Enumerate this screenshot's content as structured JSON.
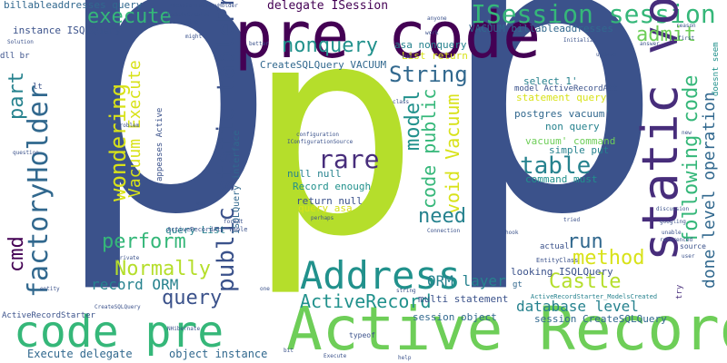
{
  "words": {
    "big_p_left": "p",
    "big_p_right": "p",
    "big_p_center": "p",
    "pre_code": "pre code",
    "active_record": "Active Record",
    "code_pre": "code pre",
    "address": "Address",
    "static_void": "static void",
    "isession_session": "ISession session",
    "factoryholder": "factoryHolder",
    "public_static_tableprefix": "public static tablePrefix",
    "activerecord": "ActiveRecord",
    "castle": "Castle",
    "execute": "execute",
    "admit": "admit",
    "nonquery": "nonquery",
    "string": "String",
    "rare": "rare",
    "table": "table",
    "model": "model",
    "need": "need",
    "run": "run",
    "perform": "perform",
    "normally": "Normally",
    "query": "query",
    "method": "method",
    "wondering": "wondering",
    "part": "part",
    "cmd": "cmd",
    "following_code": "following code",
    "done_level_operation": "done level operation",
    "vacuum_execute": "Vacuum Execute",
    "code_public": "code public",
    "void_vacuum": "void Vacuum",
    "record_orm": "record ORM",
    "orm_layer": "ORM layer",
    "database_level": "database level",
    "delegate_isession": "delegate ISession",
    "billableaddresses_query": "billableaddresses query",
    "vacuum_billableaddresses": "VACUUM billableaddresses",
    "instance_isqlquery": "instance ISQLQuery",
    "createsqlquery_vacuum": "CreateSQLQuery VACUUM",
    "asa_nonquery": "asa nonquery",
    "list_return": "List return",
    "select_1": "select 1'",
    "model_activerecordatt": "model ActiveRecordAtt",
    "statement_query": "statement query",
    "postgres_vacuum": "postgres vacuum'",
    "non_query": "non query",
    "vacuum_command": "vacuum' command",
    "simple_put": "simple put",
    "command_must": "command must",
    "null_null": "null null",
    "record_enough": "Record enough",
    "return_null": "return null",
    "query_asa": "query asa",
    "multi_statement": "multi statement",
    "session_object": "session object",
    "session_createsqlquery": "session CreateSQLQuery",
    "object_instance": "object instance",
    "execute_delegate": "Execute delegate",
    "activerecordstarter": "ActiveRecordStarter",
    "looking_isqlquery": "looking ISQLQuery",
    "activerecordstarter_models": "ActiveRecordStarter_ModelsCreated",
    "query_list": "query List",
    "activerecordatt_table": "ActiveRecordAtt Table",
    "isqlquery_interface": "ISQLQuery interface",
    "appeases_active": "appeases Active",
    "actual": "actual",
    "gt": "gt",
    "lt": "lt",
    "dll_br": "dll br",
    "entityclass": "EntityClass",
    "typeof": "typeof",
    "doesnt_seem": "doesnt seem",
    "try": "try",
    "source": "source",
    "something": "something",
    "reason": "reason",
    "configuration": "configuration",
    "connection": "Connection",
    "modelscreated": "ModelsCreated",
    "iconfigurationsource": "IConfigurationSource",
    "createsqlquery_small": "CreateSQLQuery",
    "entity": "entity",
    "problem": "problem",
    "string_small": "string",
    "format": "format",
    "hook": "hook",
    "discussion": "discussion",
    "unable": "unable",
    "googling": "googling",
    "referenced": "referenced",
    "perhaps": "perhaps",
    "anyone": "anyone",
    "might": "might",
    "way": "way",
    "class": "class",
    "user": "user",
    "better": "better",
    "one": "one",
    "first": "first",
    "bit": "bit",
    "solution": "Solution",
    "new": "new",
    "answer": "answer",
    "update": "update",
    "question": "question",
    "initialize": "Initialize",
    "nhibernate": "NHibernate",
    "sessionfactoryholder": "ISessionFactoryHolder",
    "execute_small": "Execute",
    "private": "private",
    "run_small": "run",
    "tried": "tried",
    "work": "work",
    "help": "help"
  },
  "colors": {
    "navy": "#3b528b",
    "purple": "#440154",
    "lime": "#b5de2b",
    "green": "#6ece58",
    "teal": "#21918c",
    "mint": "#35b779",
    "blue": "#31688e",
    "dark_teal": "#26828e",
    "yellow": "#d8e219",
    "indigo": "#472d7b",
    "light_green": "#90d743"
  }
}
